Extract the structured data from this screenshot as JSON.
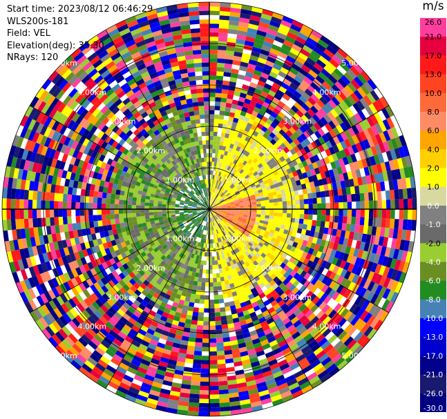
{
  "info": {
    "start_time": "Start time: 2023/08/12 06:46:29",
    "instrument": "WLS200s-181",
    "field": "Field: VEL",
    "elevation": "Elevation(deg): 35.30",
    "nrays": "NRays: 120"
  },
  "chart_data": {
    "type": "heatmap",
    "projection": "polar-ppi",
    "rings_km": [
      1,
      2,
      3,
      4,
      5
    ],
    "ring_labels": [
      "1.00km",
      "2.00km",
      "3.00km",
      "4.00km",
      "5.00km"
    ],
    "colorbar": {
      "unit": "m/s",
      "ticks": [
        "26.0",
        "21.0",
        "17.0",
        "13.0",
        "10.0",
        "8.0",
        "6.0",
        "4.0",
        "2.0",
        "1.0",
        "0.0",
        "-1.0",
        "-2.0",
        "-4.0",
        "-6.0",
        "-8.0",
        "-10.0",
        "-13.0",
        "-17.0",
        "-21.0",
        "-26.0",
        "-30.0"
      ],
      "colors": [
        "#ff3e9e",
        "#e6003e",
        "#ff1a1a",
        "#ff4422",
        "#ff6a3a",
        "#ff8c66",
        "#ffa500",
        "#ffd000",
        "#ffff00",
        "#d8d8a0",
        "#808080",
        "#6a6a6a",
        "#9acd32",
        "#6b8e23",
        "#228b22",
        "#4682b4",
        "#0000ff",
        "#0000cd",
        "#00008b",
        "#191970",
        "#000080"
      ]
    },
    "pattern": "inner ~2.3 km: positive velocities (yellow/orange/gray) east, negative velocities (green/blue) west; outer range: random noise colours"
  }
}
